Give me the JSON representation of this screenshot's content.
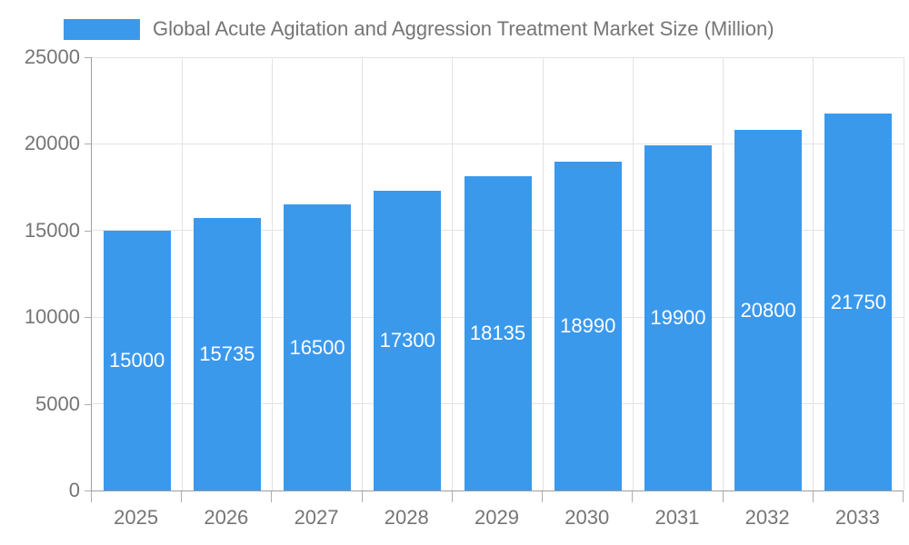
{
  "chart_data": {
    "type": "bar",
    "title": "Global Acute Agitation and Aggression Treatment Market Size (Million)",
    "categories": [
      "2025",
      "2026",
      "2027",
      "2028",
      "2029",
      "2030",
      "2031",
      "2032",
      "2033"
    ],
    "values": [
      15000,
      15735,
      16500,
      17300,
      18135,
      18990,
      19900,
      20800,
      21750
    ],
    "xlabel": "",
    "ylabel": "",
    "ylim": [
      0,
      25000
    ],
    "yticks": [
      0,
      5000,
      10000,
      15000,
      20000,
      25000
    ],
    "grid": true,
    "legend_position": "top",
    "colors": {
      "bar": "#3B99EC",
      "value_label": "#FFFFFF",
      "axis_line": "#9E9E9E",
      "tick_mark": "#ADADAD",
      "gridline": "#E3E3E3",
      "text": "#757575",
      "background": "#FFFFFF"
    }
  }
}
